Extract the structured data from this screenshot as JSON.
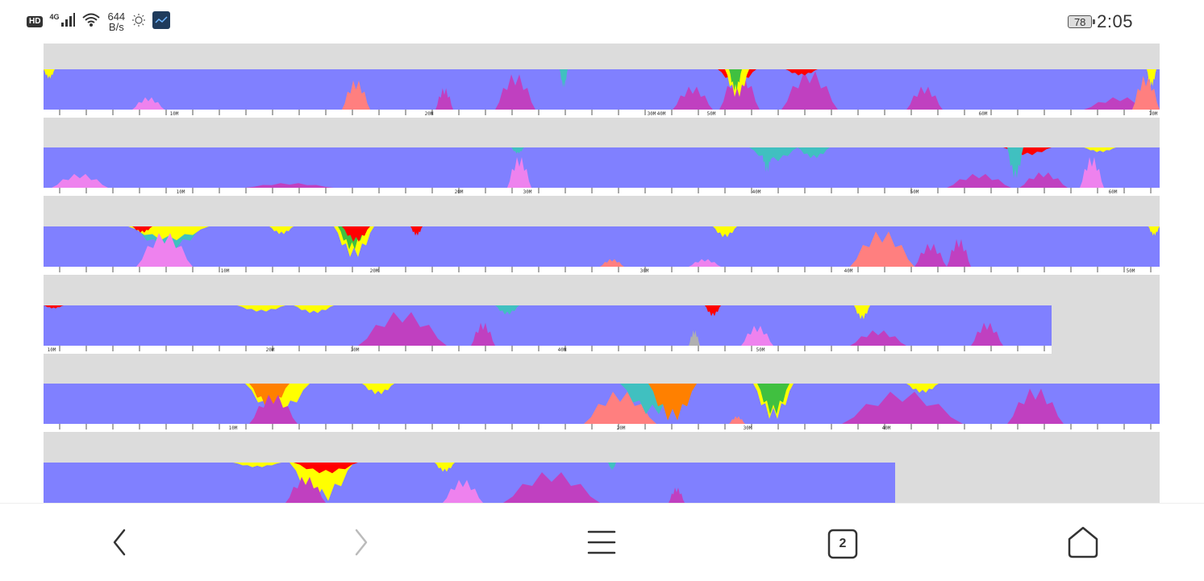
{
  "status_bar": {
    "hd": "HD",
    "network": "4G",
    "speed_value": "644",
    "speed_unit": "B/s",
    "battery": "78",
    "time": "2:05",
    "icons": [
      "signal-icon",
      "wifi-icon",
      "brightness-icon",
      "app-notification-icon"
    ]
  },
  "colors": {
    "background": "#dcdcdc",
    "base": "#8080ff",
    "magenta": "#c040c0",
    "pink": "#ee82ee",
    "salmon": "#ff7f7f",
    "yellow": "#ffff00",
    "red": "#ff0000",
    "orange": "#ff8000",
    "teal": "#40c0c0",
    "green": "#40c040"
  },
  "rows": [
    {
      "labels": [
        "10M",
        "20M",
        "30M",
        "40M",
        "50M",
        "60M",
        "70M"
      ]
    },
    {
      "labels": [
        "10M",
        "20M",
        "30M",
        "40M",
        "50M",
        "60M"
      ]
    },
    {
      "labels": [
        "10M",
        "20M",
        "30M",
        "40M",
        "50M"
      ]
    },
    {
      "labels": [
        "10M",
        "20M",
        "30M",
        "40M",
        "50M"
      ]
    },
    {
      "labels": [
        "10M",
        "20M",
        "30M",
        "40M"
      ]
    },
    {
      "labels": []
    }
  ],
  "navbar": {
    "tabs_count": "2",
    "icons": [
      "back-icon",
      "forward-icon",
      "menu-icon",
      "tabs-icon",
      "home-icon"
    ]
  }
}
